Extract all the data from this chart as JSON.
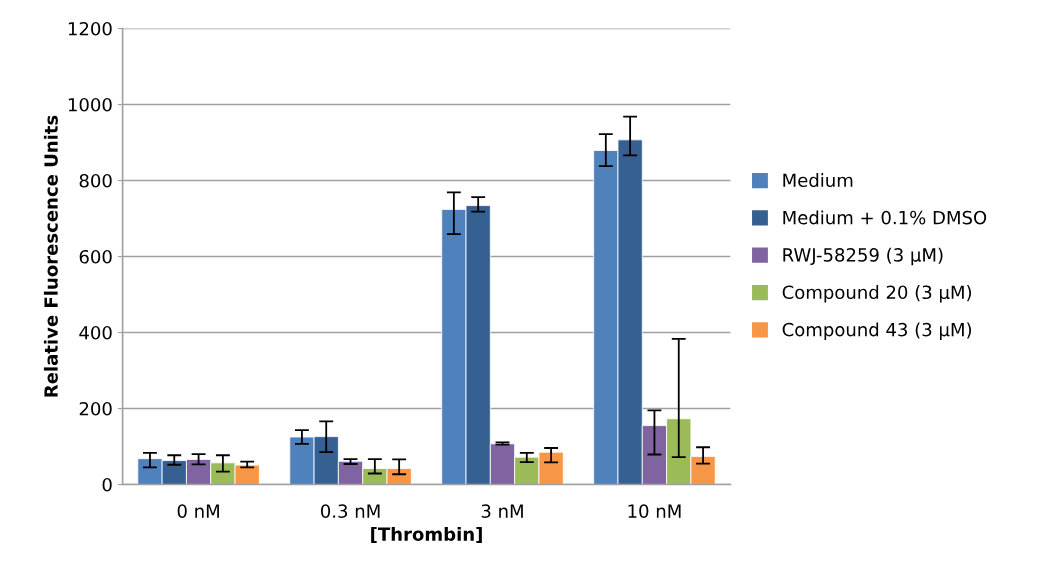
{
  "chart_data": {
    "type": "bar",
    "xlabel": "[Thrombin]",
    "ylabel": "Relative Fluorescence Units",
    "categories": [
      "0 nM",
      "0.3 nM",
      "3 nM",
      "10 nM"
    ],
    "ylim": [
      0,
      1200
    ],
    "yticks": [
      0,
      200,
      400,
      600,
      800,
      1000,
      1200
    ],
    "grid": "y",
    "legend": "right",
    "series": [
      {
        "name": "Medium",
        "color": "#4f81bd",
        "values": [
          68,
          125,
          724,
          879
        ],
        "errors": [
          [
            45,
            83
          ],
          [
            107,
            143
          ],
          [
            659,
            769
          ],
          [
            838,
            922
          ]
        ]
      },
      {
        "name": "Medium + 0.1% DMSO",
        "color": "#376092",
        "values": [
          63,
          126,
          734,
          907
        ],
        "errors": [
          [
            52,
            77
          ],
          [
            85,
            166
          ],
          [
            718,
            756
          ],
          [
            866,
            968
          ]
        ]
      },
      {
        "name": "RWJ-58259 (3 µM)",
        "color": "#8064a2",
        "values": [
          66,
          61,
          107,
          155
        ],
        "errors": [
          [
            53,
            80
          ],
          [
            54,
            67
          ],
          [
            105,
            111
          ],
          [
            79,
            195
          ]
        ]
      },
      {
        "name": "Compound 20 (3 µM)",
        "color": "#9bbb59",
        "values": [
          57,
          42,
          72,
          173
        ],
        "errors": [
          [
            34,
            77
          ],
          [
            29,
            67
          ],
          [
            59,
            83
          ],
          [
            72,
            383
          ]
        ]
      },
      {
        "name": "Compound 43 (3 µM)",
        "color": "#f79646",
        "values": [
          51,
          42,
          85,
          74
        ],
        "errors": [
          [
            45,
            60
          ],
          [
            27,
            66
          ],
          [
            58,
            96
          ],
          [
            55,
            98
          ]
        ]
      }
    ]
  }
}
